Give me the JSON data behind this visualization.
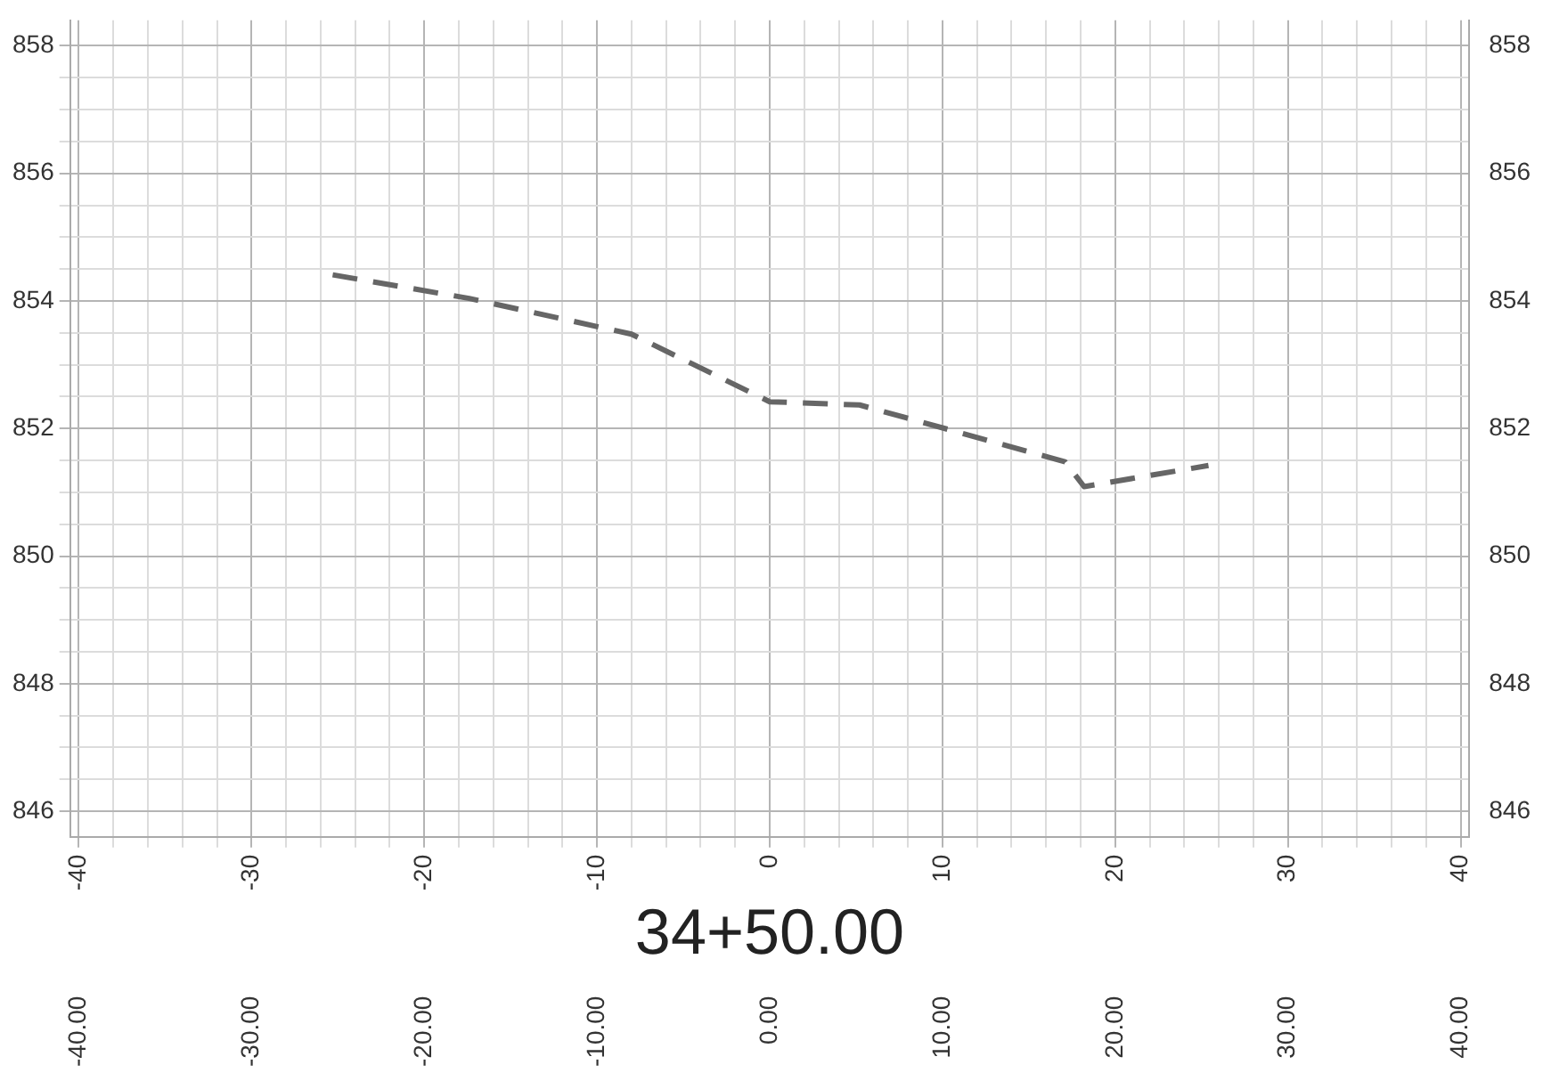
{
  "chart_data": {
    "type": "line",
    "xlabel": "34+50.00",
    "x": [
      -25.3,
      -17.4,
      -8,
      0,
      5.2,
      17.1,
      18.2,
      25.4
    ],
    "series": [
      {
        "color": "#666666",
        "values": [
          854.41,
          854.04,
          853.48,
          852.42,
          852.37,
          851.48,
          851.09,
          851.42
        ]
      }
    ],
    "line_style": "dashed",
    "marker": "none",
    "grid": true,
    "xlim": [
      -40.5,
      40.5
    ],
    "xticks": [
      -40,
      {
        "value": -38,
        "label": null
      },
      {
        "value": -36,
        "label": null
      },
      {
        "value": -34,
        "label": null
      },
      {
        "value": -32,
        "label": null
      },
      -30,
      {
        "value": -28,
        "label": null
      },
      {
        "value": -26,
        "label": null
      },
      {
        "value": -24,
        "label": null
      },
      {
        "value": -22,
        "label": null
      },
      -20,
      {
        "value": -18,
        "label": null
      },
      {
        "value": -16,
        "label": null
      },
      {
        "value": -14,
        "label": null
      },
      {
        "value": -12,
        "label": null
      },
      -10,
      {
        "value": -8,
        "label": null
      },
      {
        "value": -6,
        "label": null
      },
      {
        "value": -4,
        "label": null
      },
      {
        "value": -2,
        "label": null
      },
      0,
      {
        "value": 2,
        "label": null
      },
      {
        "value": 4,
        "label": null
      },
      {
        "value": 6,
        "label": null
      },
      {
        "value": 8,
        "label": null
      },
      10,
      {
        "value": 12,
        "label": null
      },
      {
        "value": 14,
        "label": null
      },
      {
        "value": 16,
        "label": null
      },
      {
        "value": 18,
        "label": null
      },
      20,
      {
        "value": 22,
        "label": null
      },
      {
        "value": 24,
        "label": null
      },
      {
        "value": 26,
        "label": null
      },
      {
        "value": 28,
        "label": null
      },
      30,
      {
        "value": 32,
        "label": null
      },
      {
        "value": 34,
        "label": null
      },
      {
        "value": 36,
        "label": null
      },
      {
        "value": 38,
        "label": null
      },
      40
    ],
    "x2lim": [
      -40.5,
      40.5
    ],
    "x2ticks": [
      {
        "value": -40,
        "label": "-40.00"
      },
      {
        "value": -30,
        "label": "-30.00"
      },
      {
        "value": -20,
        "label": "-20.00"
      },
      {
        "value": -10,
        "label": "-10.00"
      },
      {
        "value": 0,
        "label": "0.00"
      },
      {
        "value": 10,
        "label": "10.00"
      },
      {
        "value": 20,
        "label": "20.00"
      },
      {
        "value": 30,
        "label": "30.00"
      },
      {
        "value": 40,
        "label": "40.00"
      }
    ],
    "ylim": [
      845.6,
      858.4
    ],
    "yticks": [
      846,
      {
        "value": 846.5,
        "label": null
      },
      {
        "value": 847,
        "label": null
      },
      {
        "value": 847.5,
        "label": null
      },
      848,
      {
        "value": 848.5,
        "label": null
      },
      {
        "value": 849,
        "label": null
      },
      {
        "value": 849.5,
        "label": null
      },
      850,
      {
        "value": 850.5,
        "label": null
      },
      {
        "value": 851,
        "label": null
      },
      {
        "value": 851.5,
        "label": null
      },
      852,
      {
        "value": 852.5,
        "label": null
      },
      {
        "value": 853,
        "label": null
      },
      {
        "value": 853.5,
        "label": null
      },
      854,
      {
        "value": 854.5,
        "label": null
      },
      {
        "value": 855,
        "label": null
      },
      {
        "value": 855.5,
        "label": null
      },
      856,
      {
        "value": 856.5,
        "label": null
      },
      {
        "value": 857,
        "label": null
      },
      {
        "value": 857.5,
        "label": null
      },
      858
    ],
    "y2lim": [
      845.6,
      858.4
    ],
    "y2ticks": [
      846,
      848,
      850,
      852,
      854,
      856,
      858
    ]
  }
}
